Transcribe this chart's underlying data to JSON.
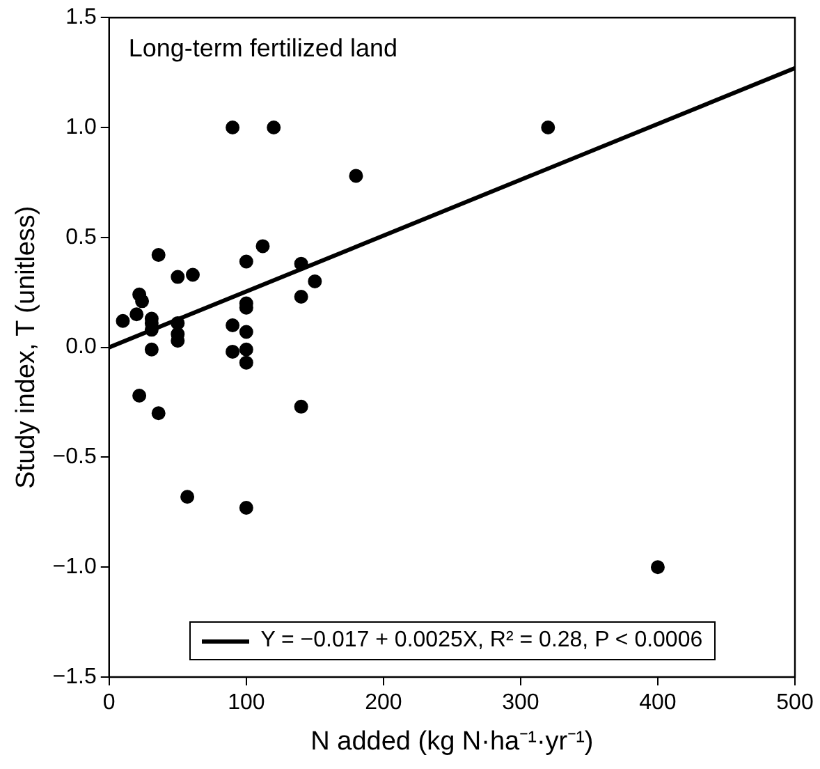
{
  "chart_data": {
    "type": "scatter",
    "title": "Long-term fertilized land",
    "xlabel": "N added (kg N·ha⁻¹·yr⁻¹)",
    "ylabel": "Study index, T (unitless)",
    "xlim": [
      0,
      500
    ],
    "xticks": [
      0,
      100,
      200,
      300,
      400,
      500
    ],
    "ylim": [
      -1.5,
      1.5
    ],
    "yticks": [
      {
        "value": -1.5,
        "label": "−1.5"
      },
      {
        "value": -1,
        "label": "−1.0"
      },
      {
        "value": -0.5,
        "label": "−0.5"
      },
      {
        "value": 0,
        "label": "0.0"
      },
      {
        "value": 0.5,
        "label": "0.5"
      },
      {
        "value": 1,
        "label": "1.0"
      },
      {
        "value": 1.5,
        "label": "1.5"
      }
    ],
    "grid": false,
    "legend": "bottom",
    "marker": "circle",
    "series": [
      {
        "type": "scatter",
        "color": "#000000",
        "x": [
          90,
          120,
          320,
          180,
          36,
          112,
          100,
          50,
          61,
          140,
          150,
          140,
          22,
          24,
          100,
          100,
          10,
          20,
          31,
          31,
          31,
          50,
          50,
          50,
          90,
          100,
          31,
          90,
          100,
          100,
          22,
          36,
          140,
          57,
          100,
          400
        ],
        "values": [
          1.0,
          1.0,
          1.0,
          0.78,
          0.42,
          0.46,
          0.39,
          0.32,
          0.33,
          0.38,
          0.3,
          0.23,
          0.24,
          0.21,
          0.2,
          0.18,
          0.12,
          0.15,
          0.13,
          0.11,
          0.08,
          0.11,
          0.06,
          0.03,
          0.1,
          0.07,
          -0.01,
          -0.02,
          -0.01,
          -0.07,
          -0.22,
          -0.3,
          -0.27,
          -0.68,
          -0.73,
          -1.0
        ]
      },
      {
        "type": "line",
        "name": "Y = −0.017 + 0.0025X, R² = 0.28, P < 0.0006",
        "color": "#000000",
        "marker": "none",
        "line_style": "solid",
        "x": [
          0,
          500
        ],
        "values": [
          0.0,
          1.27
        ]
      }
    ]
  }
}
